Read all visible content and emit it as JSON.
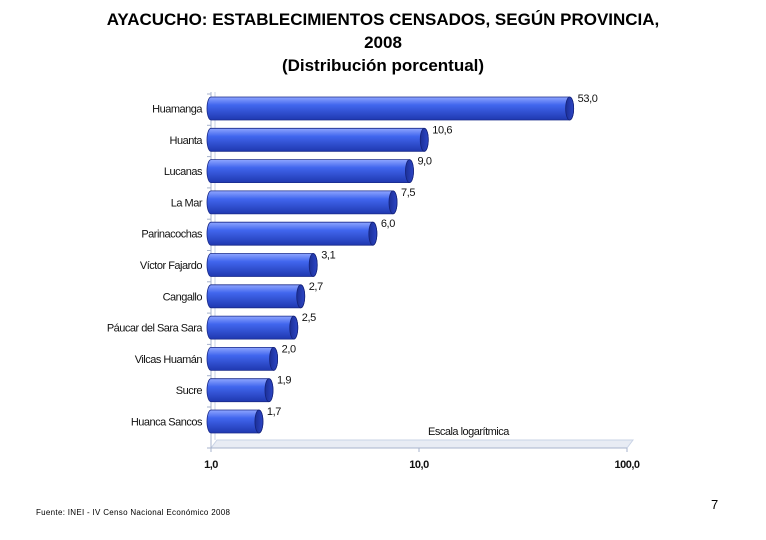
{
  "title": {
    "line1": "AYACUCHO: ESTABLECIMIENTOS CENSADOS, SEGÚN PROVINCIA,",
    "line2": "2008",
    "line3": "(Distribución porcentual)"
  },
  "chart_data": {
    "type": "bar",
    "orientation": "horizontal",
    "scale": "log",
    "categories": [
      "Huamanga",
      "Huanta",
      "Lucanas",
      "La Mar",
      "Parinacochas",
      "Víctor Fajardo",
      "Cangallo",
      "Páucar del Sara Sara",
      "Vilcas Huamán",
      "Sucre",
      "Huanca Sancos"
    ],
    "values": [
      53.0,
      10.6,
      9.0,
      7.5,
      6.0,
      3.1,
      2.7,
      2.5,
      2.0,
      1.9,
      1.7
    ],
    "value_labels": [
      "53,0",
      "10,6",
      "9,0",
      "7,5",
      "6,0",
      "3,1",
      "2,7",
      "2,5",
      "2,0",
      "1,9",
      "1,7"
    ],
    "xlim": [
      1,
      100
    ],
    "x_ticks": [
      1,
      10,
      100
    ],
    "x_tick_labels": [
      "1,0",
      "10,0",
      "100,0"
    ],
    "axis_note": "Escala logarítmica",
    "bar_color": "#3355dd"
  },
  "footer": {
    "source": "Fuente: INEI - IV Censo Nacional Económico 2008",
    "page_number": "7"
  }
}
